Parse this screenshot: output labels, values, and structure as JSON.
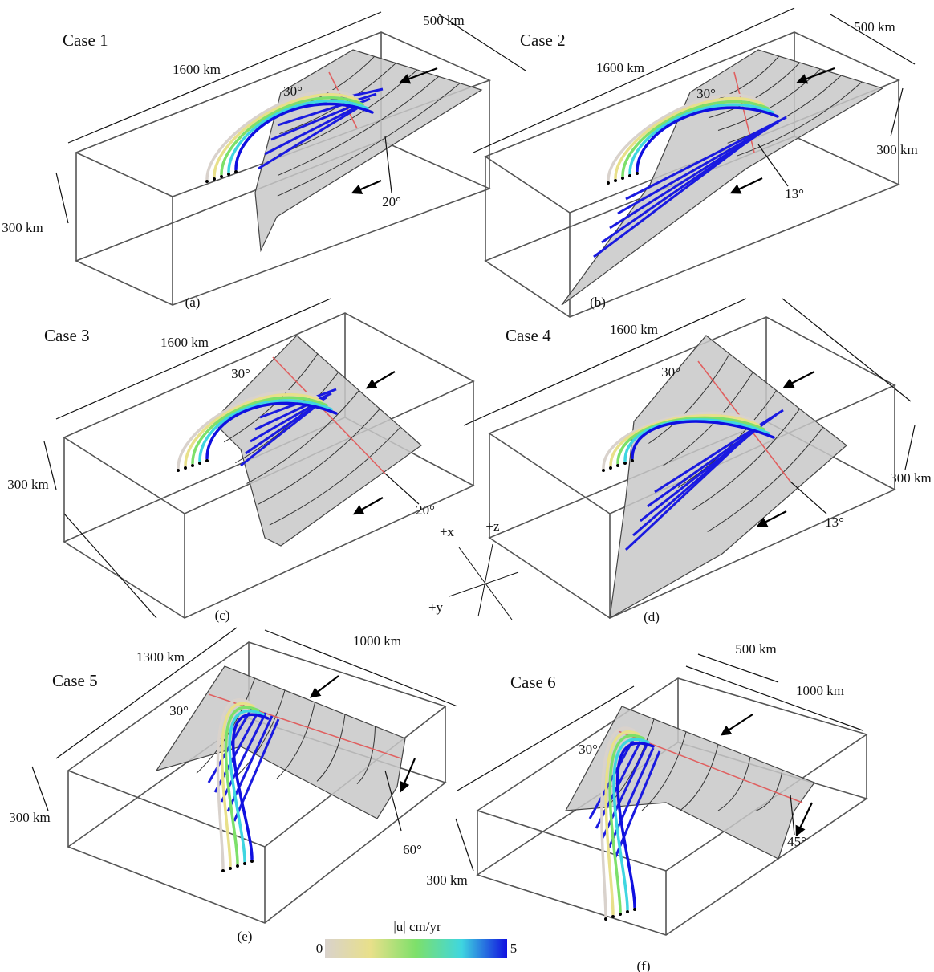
{
  "panels": [
    {
      "title": "Case 1",
      "label": "(a)",
      "dimensions": [
        "1600 km",
        "500 km",
        "300 km"
      ],
      "angles": [
        "30°",
        "20°"
      ]
    },
    {
      "title": "Case 2",
      "label": "(b)",
      "dimensions": [
        "1600 km",
        "500 km",
        "300 km"
      ],
      "angles": [
        "30°",
        "13°"
      ]
    },
    {
      "title": "Case 3",
      "label": "(c)",
      "dimensions": [
        "1600 km",
        "300 km"
      ],
      "angles": [
        "30°",
        "20°"
      ]
    },
    {
      "title": "Case 4",
      "label": "(d)",
      "dimensions": [
        "1600 km",
        "300 km"
      ],
      "angles": [
        "30°",
        "13°"
      ]
    },
    {
      "title": "Case 5",
      "label": "(e)",
      "dimensions": [
        "1300 km",
        "1000 km",
        "300 km"
      ],
      "angles": [
        "30°",
        "60°"
      ]
    },
    {
      "title": "Case 6",
      "label": "(f)",
      "dimensions": [
        "500 km",
        "1000 km",
        "300 km"
      ],
      "angles": [
        "30°",
        "45°"
      ]
    }
  ],
  "axes": [
    "+x",
    "+z",
    "+y"
  ],
  "colorbar": {
    "label": "|u| cm/yr",
    "min": 0,
    "max": 5,
    "colors": [
      "#d9d2cc",
      "#e8e08a",
      "#7de06a",
      "#3fd6e0",
      "#1010e0"
    ]
  }
}
